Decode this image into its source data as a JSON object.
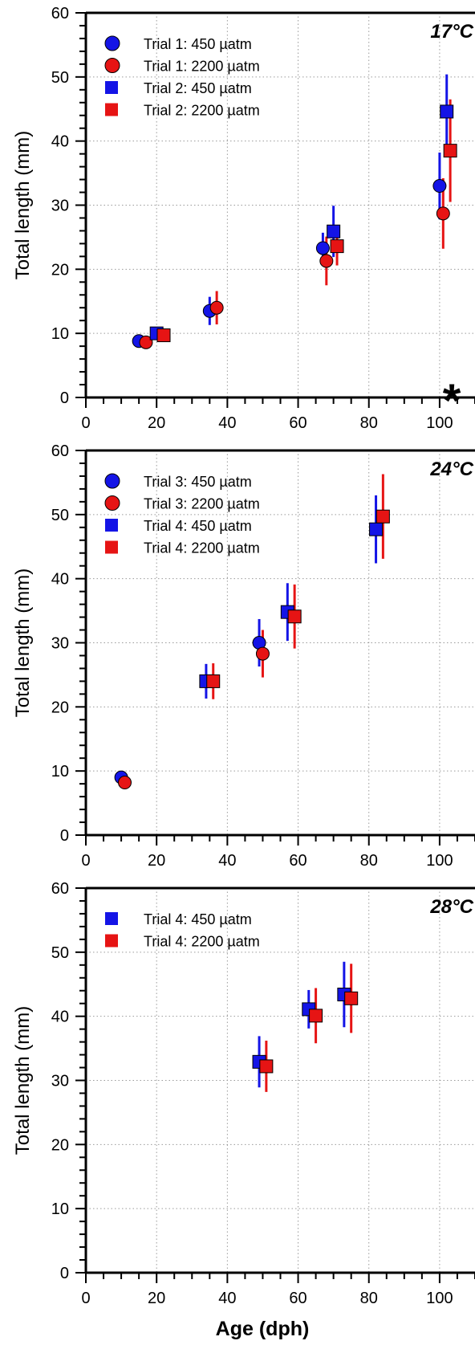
{
  "figure": {
    "xlabel": "Age (dph)",
    "colors": {
      "450": "#1414e6",
      "2200": "#e61414"
    }
  },
  "chart_data": [
    {
      "type": "scatter",
      "panel_label": "17°C",
      "annotation": "*",
      "ylabel": "Total length (mm)",
      "xlim": [
        0,
        110
      ],
      "ylim": [
        0,
        60
      ],
      "xticks": [
        0,
        20,
        40,
        60,
        80,
        100
      ],
      "yticks": [
        0,
        10,
        20,
        30,
        40,
        50,
        60
      ],
      "grid": true,
      "legend_position": "top-left",
      "series": [
        {
          "name": "Trial 1: 450 µatm",
          "marker": "circle",
          "color": "#1414e6",
          "x": [
            15,
            35,
            67,
            100
          ],
          "y": [
            8.8,
            13.5,
            23.3,
            33.0
          ],
          "err": [
            0.8,
            2.2,
            2.4,
            5.2
          ]
        },
        {
          "name": "Trial 1: 2200 µatm",
          "marker": "circle",
          "color": "#e61414",
          "x": [
            17,
            37,
            68,
            101
          ],
          "y": [
            8.6,
            14.0,
            21.3,
            28.7
          ],
          "err": [
            0.8,
            2.6,
            3.8,
            5.5
          ]
        },
        {
          "name": "Trial 2: 450 µatm",
          "marker": "square",
          "color": "#1414e6",
          "x": [
            20,
            70,
            102
          ],
          "y": [
            10.0,
            25.9,
            44.6
          ],
          "err": [
            0.9,
            4.0,
            5.8
          ]
        },
        {
          "name": "Trial 2: 2200 µatm",
          "marker": "square",
          "color": "#e61414",
          "x": [
            22,
            71,
            103
          ],
          "y": [
            9.7,
            23.6,
            38.5
          ],
          "err": [
            0.8,
            3.0,
            8.0
          ]
        }
      ]
    },
    {
      "type": "scatter",
      "panel_label": "24°C",
      "ylabel": "Total length (mm)",
      "xlim": [
        0,
        110
      ],
      "ylim": [
        0,
        60
      ],
      "xticks": [
        0,
        20,
        40,
        60,
        80,
        100
      ],
      "yticks": [
        0,
        10,
        20,
        30,
        40,
        50,
        60
      ],
      "grid": true,
      "legend_position": "top-left",
      "series": [
        {
          "name": "Trial 3: 450 µatm",
          "marker": "circle",
          "color": "#1414e6",
          "x": [
            10,
            49
          ],
          "y": [
            9.0,
            30.0
          ],
          "err": [
            0.7,
            3.7
          ]
        },
        {
          "name": "Trial 3: 2200 µatm",
          "marker": "circle",
          "color": "#e61414",
          "x": [
            11,
            50
          ],
          "y": [
            8.2,
            28.3
          ],
          "err": [
            0.6,
            3.7
          ]
        },
        {
          "name": "Trial 4: 450 µatm",
          "marker": "square",
          "color": "#1414e6",
          "x": [
            34,
            57,
            82
          ],
          "y": [
            24.0,
            34.8,
            47.7
          ],
          "err": [
            2.7,
            4.5,
            5.3
          ]
        },
        {
          "name": "Trial 4: 2200 µatm",
          "marker": "square",
          "color": "#e61414",
          "x": [
            36,
            59,
            84
          ],
          "y": [
            24.0,
            34.1,
            49.7
          ],
          "err": [
            2.8,
            5.0,
            6.6
          ]
        }
      ]
    },
    {
      "type": "scatter",
      "panel_label": "28°C",
      "ylabel": "Total length (mm)",
      "xlim": [
        0,
        110
      ],
      "ylim": [
        0,
        60
      ],
      "xticks": [
        0,
        20,
        40,
        60,
        80,
        100
      ],
      "yticks": [
        0,
        10,
        20,
        30,
        40,
        50,
        60
      ],
      "grid": true,
      "legend_position": "top-left",
      "series": [
        {
          "name": "Trial 4: 450 µatm",
          "marker": "square",
          "color": "#1414e6",
          "x": [
            49,
            63,
            73
          ],
          "y": [
            32.9,
            41.1,
            43.4
          ],
          "err": [
            4.0,
            3.0,
            5.1
          ]
        },
        {
          "name": "Trial 4: 2200 µatm",
          "marker": "square",
          "color": "#e61414",
          "x": [
            51,
            65,
            75
          ],
          "y": [
            32.2,
            40.1,
            42.8
          ],
          "err": [
            4.0,
            4.3,
            5.4
          ]
        }
      ]
    }
  ]
}
